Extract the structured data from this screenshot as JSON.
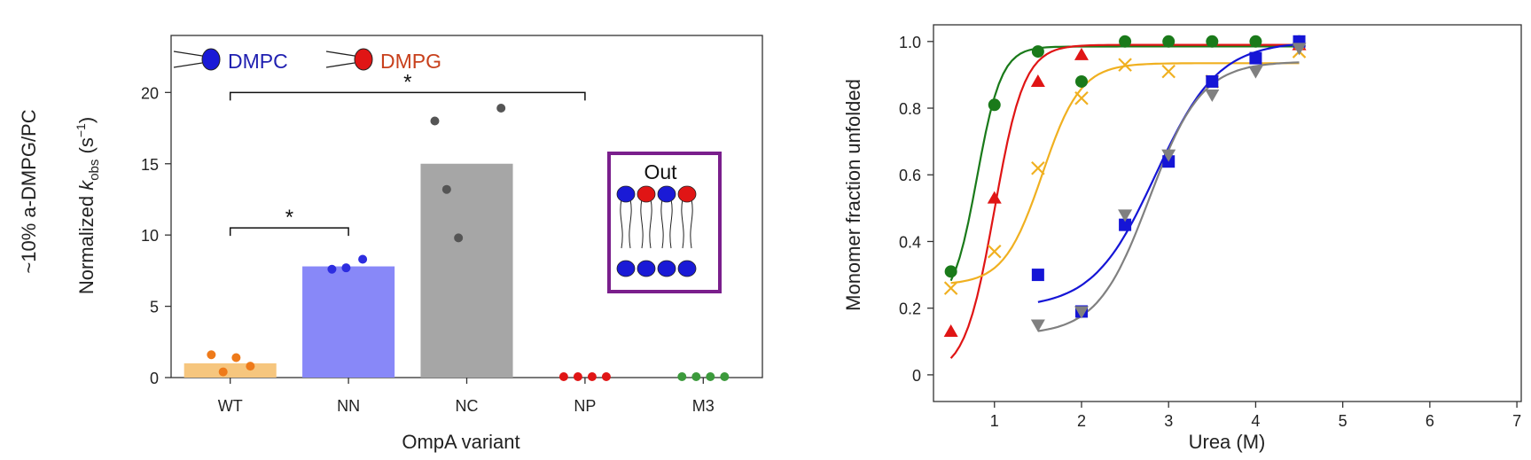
{
  "figure": {
    "left_side_label": "~10% a-DMPG/PC",
    "legend_dmpc": "DMPC",
    "legend_dmpg": "DMPG",
    "inset_label": "Out",
    "significance_mark": "*"
  },
  "colors": {
    "dmpc": "#1a1ad6",
    "dmpg": "#e01515",
    "dmpc_text": "#1f1fb0",
    "dmpg_text": "#c8401c",
    "inset_border": "#7a1f8c",
    "green": "#1a7a1a",
    "red": "#e01515",
    "orange": "#f0b020",
    "blue": "#1515d6",
    "gray": "#808080"
  },
  "chart_data": [
    {
      "type": "bar",
      "xlabel": "OmpA variant",
      "ylabel_prefix": "Normalized ",
      "ylabel_k": "k",
      "ylabel_sub": "obs",
      "ylabel_unit_open": " (s",
      "ylabel_sup": "−1",
      "ylabel_close": ")",
      "ylim": [
        0,
        24
      ],
      "yticks": [
        "0",
        "5",
        "10",
        "15",
        "20"
      ],
      "yticks_values": [
        0,
        5,
        10,
        15,
        20
      ],
      "categories": [
        "WT",
        "NN",
        "NC",
        "NP",
        "M3"
      ],
      "values": [
        1.0,
        7.8,
        15.0,
        0,
        0
      ],
      "bar_colors": [
        "#f6c67e",
        "#8888f8",
        "#a6a6a6",
        null,
        null
      ],
      "points": [
        {
          "category": "WT",
          "color": "#ee7a1a",
          "values": [
            1.6,
            0.4,
            1.4,
            0.8
          ],
          "offsets": [
            -0.16,
            -0.06,
            0.05,
            0.17
          ]
        },
        {
          "category": "NN",
          "color": "#2d2de0",
          "values": [
            7.6,
            7.7,
            8.3
          ],
          "offsets": [
            -0.14,
            -0.02,
            0.12
          ]
        },
        {
          "category": "NC",
          "color": "#555555",
          "values": [
            18.0,
            13.2,
            9.8,
            18.9
          ],
          "offsets": [
            -0.27,
            -0.17,
            -0.07,
            0.29
          ]
        },
        {
          "category": "NP",
          "color": "#e01515",
          "values": [
            0,
            0,
            0,
            0
          ],
          "offsets": [
            -0.18,
            -0.06,
            0.06,
            0.18
          ]
        },
        {
          "category": "M3",
          "color": "#3c9a3c",
          "values": [
            0,
            0,
            0,
            0
          ],
          "offsets": [
            -0.18,
            -0.06,
            0.06,
            0.18
          ]
        }
      ],
      "significance": [
        {
          "from": "WT",
          "to": "NP",
          "y": 20.0,
          "label": "*"
        },
        {
          "from": "WT",
          "to": "NN",
          "y": 10.5,
          "label": "*"
        }
      ]
    },
    {
      "type": "scatter",
      "xlabel": "Urea (M)",
      "ylabel": "Monomer fraction unfolded",
      "xlim": [
        0.3,
        7.05
      ],
      "ylim": [
        -0.08,
        1.05
      ],
      "xticks": [
        "1",
        "2",
        "3",
        "4",
        "5",
        "6",
        "7"
      ],
      "xticks_values": [
        1,
        2,
        3,
        4,
        5,
        6,
        7
      ],
      "yticks": [
        "0",
        "0.2",
        "0.4",
        "0.6",
        "0.8",
        "1.0"
      ],
      "yticks_values": [
        0,
        0.2,
        0.4,
        0.6,
        0.8,
        1.0
      ],
      "series": [
        {
          "marker": "circle",
          "color": "#1a7a1a",
          "x": [
            0.5,
            1.0,
            1.5,
            2.0,
            2.5,
            3.0,
            3.5,
            4.0,
            4.5
          ],
          "y": [
            0.31,
            0.81,
            0.97,
            0.88,
            1.0,
            1.0,
            1.0,
            1.0,
            1.0
          ],
          "fit": {
            "bottom": 0.2,
            "top": 0.985,
            "mid": 0.8,
            "slope": 0.14,
            "x_range": [
              0.5,
              4.5
            ]
          }
        },
        {
          "marker": "triangle-up",
          "color": "#e01515",
          "x": [
            0.5,
            1.0,
            1.5,
            2.0,
            4.5
          ],
          "y": [
            0.13,
            0.53,
            0.88,
            0.96,
            0.99
          ],
          "fit": {
            "bottom": 0.0,
            "top": 0.99,
            "mid": 1.0,
            "slope": 0.17,
            "x_range": [
              0.5,
              4.5
            ]
          }
        },
        {
          "marker": "x",
          "color": "#f0b020",
          "x": [
            0.5,
            1.0,
            1.5,
            2.0,
            2.5,
            3.0,
            3.5,
            4.5
          ],
          "y": [
            0.26,
            0.37,
            0.62,
            0.83,
            0.93,
            0.91,
            0.88,
            0.97
          ],
          "fit": {
            "bottom": 0.27,
            "top": 0.935,
            "mid": 1.55,
            "slope": 0.22,
            "x_range": [
              0.5,
              4.5
            ]
          }
        },
        {
          "marker": "square",
          "color": "#1515d6",
          "x": [
            1.5,
            2.0,
            2.5,
            3.0,
            3.5,
            4.0,
            4.5
          ],
          "y": [
            0.3,
            0.19,
            0.45,
            0.64,
            0.88,
            0.95,
            1.0
          ],
          "fit": {
            "bottom": 0.2,
            "top": 1.0,
            "mid": 2.85,
            "slope": 0.36,
            "x_range": [
              1.5,
              4.5
            ]
          }
        },
        {
          "marker": "triangle-down",
          "color": "#808080",
          "x": [
            1.5,
            2.0,
            2.5,
            3.0,
            3.5,
            4.0,
            4.5
          ],
          "y": [
            0.15,
            0.19,
            0.48,
            0.66,
            0.84,
            0.91,
            0.98
          ],
          "fit": {
            "bottom": 0.12,
            "top": 0.94,
            "mid": 2.78,
            "slope": 0.3,
            "x_range": [
              1.5,
              4.5
            ]
          }
        }
      ]
    }
  ]
}
